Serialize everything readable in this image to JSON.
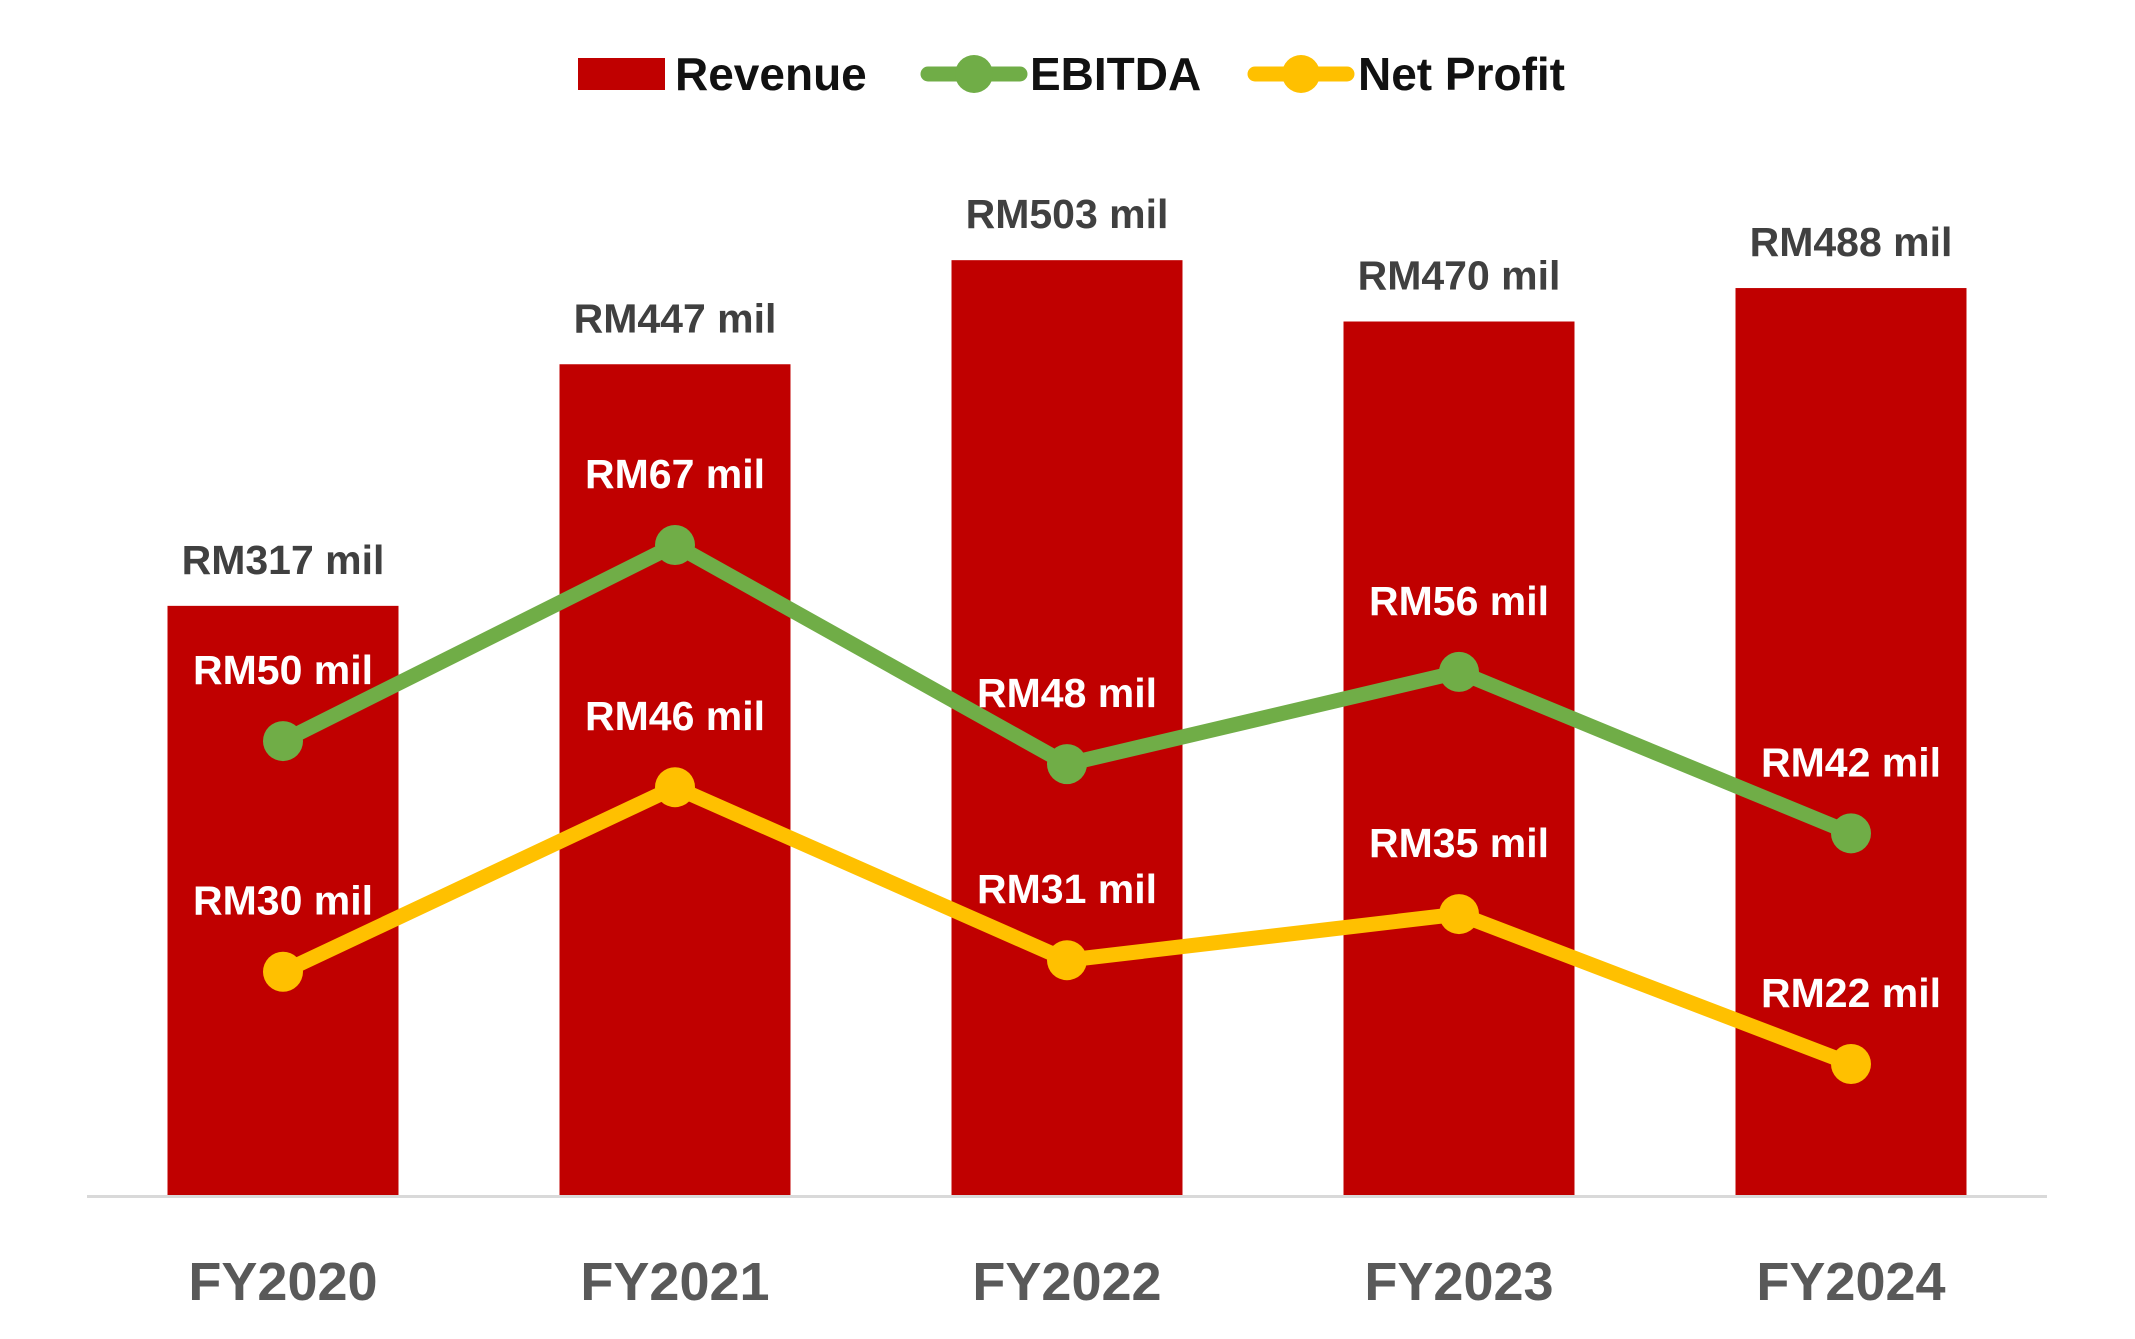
{
  "chart_data": {
    "type": "bar",
    "title": "",
    "xlabel": "",
    "ylabel": "",
    "ylim": [
      0,
      520
    ],
    "grid": false,
    "legend_position": "top-center",
    "categories": [
      "FY2020",
      "FY2021",
      "FY2022",
      "FY2023",
      "FY2024"
    ],
    "series": [
      {
        "name": "Revenue",
        "type": "bar",
        "color": "#C00000",
        "values": [
          317,
          447,
          503,
          470,
          488
        ],
        "labels": [
          "RM317 mil",
          "RM447 mil",
          "RM503 mil",
          "RM470 mil",
          "RM488 mil"
        ]
      },
      {
        "name": "EBITDA",
        "type": "line",
        "color": "#70AD47",
        "values": [
          50,
          67,
          48,
          56,
          42
        ],
        "labels": [
          "RM50 mil",
          "RM67 mil",
          "RM48 mil",
          "RM56 mil",
          "RM42 mil"
        ]
      },
      {
        "name": "Net Profit",
        "type": "line",
        "color": "#FFC000",
        "values": [
          30,
          46,
          31,
          35,
          22
        ],
        "labels": [
          "RM30 mil",
          "RM46 mil",
          "RM31 mil",
          "RM35 mil",
          "RM22 mil"
        ]
      }
    ],
    "line_axis": {
      "note": "EBITDA and Net Profit share a secondary value scale",
      "range": [
        15,
        90
      ]
    }
  }
}
